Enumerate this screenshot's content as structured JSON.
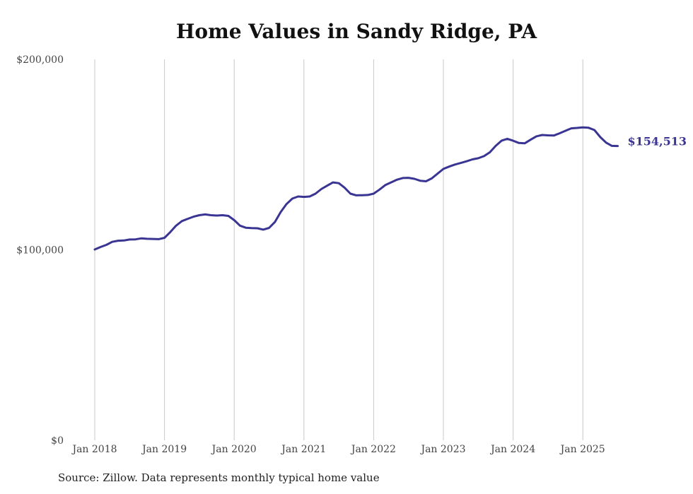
{
  "chart_data": {
    "type": "line",
    "title": "Home Values in Sandy Ridge, PA",
    "source": "Source: Zillow. Data represents monthly typical home value",
    "ylim": [
      0,
      200000
    ],
    "y_ticks": [
      {
        "value": 0,
        "label": "$0"
      },
      {
        "value": 100000,
        "label": "$100,000"
      },
      {
        "value": 200000,
        "label": "$200,000"
      }
    ],
    "x_ticks": [
      {
        "value": "2018-01",
        "label": "Jan 2018"
      },
      {
        "value": "2019-01",
        "label": "Jan 2019"
      },
      {
        "value": "2020-01",
        "label": "Jan 2020"
      },
      {
        "value": "2021-01",
        "label": "Jan 2021"
      },
      {
        "value": "2022-01",
        "label": "Jan 2022"
      },
      {
        "value": "2023-01",
        "label": "Jan 2023"
      },
      {
        "value": "2024-01",
        "label": "Jan 2024"
      },
      {
        "value": "2025-01",
        "label": "Jan 2025"
      }
    ],
    "grid": "vertical",
    "line_color": "#3a3593",
    "end_label": "$154,513",
    "series": [
      {
        "x": [
          "2018-01",
          "2018-02",
          "2018-03",
          "2018-04",
          "2018-05",
          "2018-06",
          "2018-07",
          "2018-08",
          "2018-09",
          "2018-10",
          "2018-11",
          "2018-12",
          "2019-01",
          "2019-02",
          "2019-03",
          "2019-04",
          "2019-05",
          "2019-06",
          "2019-07",
          "2019-08",
          "2019-09",
          "2019-10",
          "2019-11",
          "2019-12",
          "2020-01",
          "2020-02",
          "2020-03",
          "2020-04",
          "2020-05",
          "2020-06",
          "2020-07",
          "2020-08",
          "2020-09",
          "2020-10",
          "2020-11",
          "2020-12",
          "2021-01",
          "2021-02",
          "2021-03",
          "2021-04",
          "2021-05",
          "2021-06",
          "2021-07",
          "2021-08",
          "2021-09",
          "2021-10",
          "2021-11",
          "2021-12",
          "2022-01",
          "2022-02",
          "2022-03",
          "2022-04",
          "2022-05",
          "2022-06",
          "2022-07",
          "2022-08",
          "2022-09",
          "2022-10",
          "2022-11",
          "2022-12",
          "2023-01",
          "2023-02",
          "2023-03",
          "2023-04",
          "2023-05",
          "2023-06",
          "2023-07",
          "2023-08",
          "2023-09",
          "2023-10",
          "2023-11",
          "2023-12",
          "2024-01",
          "2024-02",
          "2024-03",
          "2024-04",
          "2024-05",
          "2024-06",
          "2024-07",
          "2024-08",
          "2024-09",
          "2024-10",
          "2024-11",
          "2024-12",
          "2025-01",
          "2025-02",
          "2025-03",
          "2025-04",
          "2025-05",
          "2025-06",
          "2025-07"
        ],
        "values": [
          100200,
          101500,
          102600,
          104200,
          104800,
          104900,
          105400,
          105500,
          106000,
          105800,
          105700,
          105600,
          106300,
          109300,
          112700,
          115100,
          116300,
          117400,
          118200,
          118600,
          118200,
          118000,
          118200,
          117800,
          115600,
          112700,
          111600,
          111400,
          111300,
          110600,
          111500,
          114600,
          119800,
          124000,
          126900,
          128000,
          127800,
          128000,
          129500,
          131900,
          133700,
          135400,
          135000,
          132600,
          129500,
          128600,
          128700,
          128800,
          129500,
          131600,
          134000,
          135400,
          136800,
          137700,
          137800,
          137300,
          136300,
          136000,
          137500,
          140000,
          142500,
          143700,
          144800,
          145600,
          146500,
          147500,
          148100,
          149200,
          151200,
          154600,
          157300,
          158300,
          157300,
          156100,
          155900,
          157800,
          159600,
          160300,
          160100,
          160000,
          161200,
          162500,
          163800,
          164000,
          164300,
          164100,
          162900,
          159200,
          156300,
          154600,
          154513
        ]
      }
    ]
  }
}
